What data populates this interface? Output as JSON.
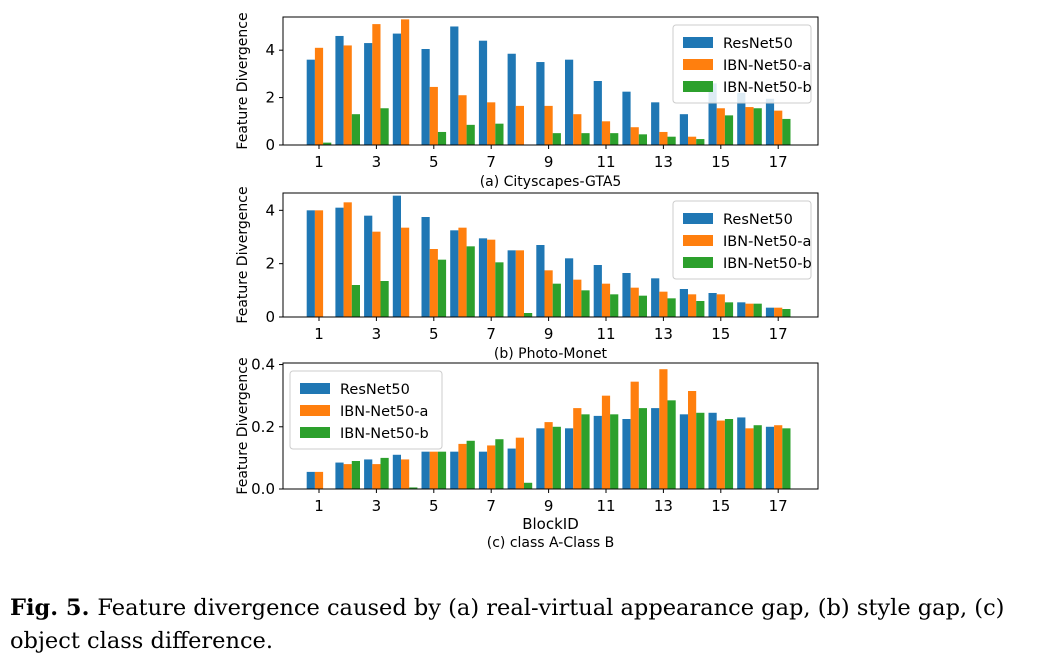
{
  "colors": {
    "resnet": "#1f77b4",
    "ibn_a": "#ff7f0e",
    "ibn_b": "#2ca02c"
  },
  "chart_data": [
    {
      "type": "bar",
      "title": "(a) Cityscapes-GTA5",
      "xlabel": "",
      "ylabel": "Feature Divergence",
      "categories": [
        "1",
        "2",
        "3",
        "4",
        "5",
        "6",
        "7",
        "8",
        "9",
        "10",
        "11",
        "12",
        "13",
        "14",
        "15",
        "16",
        "17"
      ],
      "xticks": [
        "1",
        "3",
        "5",
        "7",
        "9",
        "11",
        "13",
        "15",
        "17"
      ],
      "yticks": [
        "0",
        "2",
        "4"
      ],
      "ylim": [
        0,
        5.4
      ],
      "legend": "top-right",
      "series": [
        {
          "name": "ResNet50",
          "values": [
            3.6,
            4.6,
            4.3,
            4.7,
            4.05,
            5.0,
            4.4,
            3.85,
            3.5,
            3.6,
            2.7,
            2.25,
            1.8,
            1.3,
            2.6,
            2.2,
            1.95
          ]
        },
        {
          "name": "IBN-Net50-a",
          "values": [
            4.1,
            4.2,
            5.1,
            5.3,
            2.45,
            2.1,
            1.8,
            1.65,
            1.65,
            1.3,
            1.0,
            0.75,
            0.55,
            0.35,
            1.55,
            1.6,
            1.45
          ]
        },
        {
          "name": "IBN-Net50-b",
          "values": [
            0.1,
            1.3,
            1.55,
            0.0,
            0.55,
            0.85,
            0.9,
            0.0,
            0.5,
            0.5,
            0.5,
            0.45,
            0.35,
            0.25,
            1.25,
            1.55,
            1.1
          ]
        }
      ]
    },
    {
      "type": "bar",
      "title": "(b) Photo-Monet",
      "xlabel": "",
      "ylabel": "Feature Divergence",
      "categories": [
        "1",
        "2",
        "3",
        "4",
        "5",
        "6",
        "7",
        "8",
        "9",
        "10",
        "11",
        "12",
        "13",
        "14",
        "15",
        "16",
        "17"
      ],
      "xticks": [
        "1",
        "3",
        "5",
        "7",
        "9",
        "11",
        "13",
        "15",
        "17"
      ],
      "yticks": [
        "0",
        "2",
        "4"
      ],
      "ylim": [
        0,
        4.65
      ],
      "legend": "top-right",
      "series": [
        {
          "name": "ResNet50",
          "values": [
            4.0,
            4.1,
            3.8,
            4.55,
            3.75,
            3.25,
            2.95,
            2.5,
            2.7,
            2.2,
            1.95,
            1.65,
            1.45,
            1.05,
            0.9,
            0.55,
            0.35
          ]
        },
        {
          "name": "IBN-Net50-a",
          "values": [
            4.0,
            4.3,
            3.2,
            3.35,
            2.55,
            3.35,
            2.9,
            2.5,
            1.75,
            1.4,
            1.25,
            1.1,
            0.95,
            0.85,
            0.85,
            0.5,
            0.35
          ]
        },
        {
          "name": "IBN-Net50-b",
          "values": [
            0.0,
            1.2,
            1.35,
            0.0,
            2.15,
            2.65,
            2.05,
            0.15,
            1.25,
            1.0,
            0.85,
            0.8,
            0.7,
            0.6,
            0.55,
            0.5,
            0.3
          ]
        }
      ]
    },
    {
      "type": "bar",
      "title": "(c) class A-Class B",
      "xlabel": "BlockID",
      "ylabel": "Feature Divergence",
      "categories": [
        "1",
        "2",
        "3",
        "4",
        "5",
        "6",
        "7",
        "8",
        "9",
        "10",
        "11",
        "12",
        "13",
        "14",
        "15",
        "16",
        "17"
      ],
      "xticks": [
        "1",
        "3",
        "5",
        "7",
        "9",
        "11",
        "13",
        "15",
        "17"
      ],
      "yticks": [
        "0.0",
        "0.2",
        "0.4"
      ],
      "ylim": [
        0,
        0.405
      ],
      "legend": "top-left",
      "series": [
        {
          "name": "ResNet50",
          "values": [
            0.055,
            0.085,
            0.095,
            0.11,
            0.12,
            0.12,
            0.12,
            0.13,
            0.195,
            0.195,
            0.235,
            0.225,
            0.26,
            0.24,
            0.245,
            0.23,
            0.2
          ]
        },
        {
          "name": "IBN-Net50-a",
          "values": [
            0.055,
            0.08,
            0.08,
            0.095,
            0.12,
            0.145,
            0.14,
            0.165,
            0.215,
            0.26,
            0.3,
            0.345,
            0.385,
            0.315,
            0.22,
            0.195,
            0.205
          ]
        },
        {
          "name": "IBN-Net50-b",
          "values": [
            0.0,
            0.09,
            0.1,
            0.005,
            0.12,
            0.155,
            0.16,
            0.02,
            0.2,
            0.24,
            0.24,
            0.26,
            0.285,
            0.245,
            0.225,
            0.205,
            0.195
          ]
        }
      ]
    }
  ],
  "caption": {
    "label": "Fig. 5.",
    "text": "Feature divergence caused by (a) real-virtual appearance gap, (b) style gap, (c) object class difference."
  }
}
